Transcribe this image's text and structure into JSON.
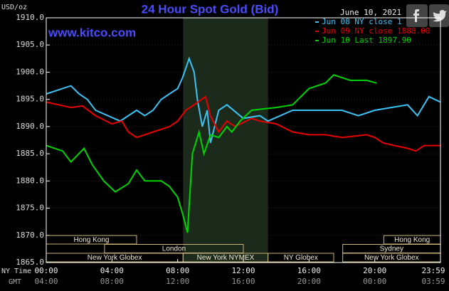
{
  "chart_data": {
    "type": "line",
    "title": "24 Hour Spot Gold (Bid)",
    "source": "www.kitco.com",
    "unit_label": "USD/oz",
    "date": "June 10, 2021",
    "time_row_labels": [
      "NY Time",
      "GMT"
    ],
    "ylim": [
      1865,
      1910
    ],
    "yticks": [
      {
        "value": 1865,
        "label": "1865.0"
      },
      {
        "value": 1870,
        "label": "1870.0"
      },
      {
        "value": 1875,
        "label": "1875.0"
      },
      {
        "value": 1880,
        "label": "1880.0"
      },
      {
        "value": 1885,
        "label": "1885.0"
      },
      {
        "value": 1890,
        "label": "1890.0"
      },
      {
        "value": 1895,
        "label": "1895.0"
      },
      {
        "value": 1900,
        "label": "1900.0"
      },
      {
        "value": 1905,
        "label": "1905.0"
      },
      {
        "value": 1910,
        "label": "1910.0"
      }
    ],
    "xlim": [
      0,
      24
    ],
    "xticks": [
      {
        "value": 0,
        "label": "00:00"
      },
      {
        "value": 4,
        "label": "04:00"
      },
      {
        "value": 8,
        "label": "08:00"
      },
      {
        "value": 12,
        "label": "12:00"
      },
      {
        "value": 16,
        "label": "16:00"
      },
      {
        "value": 20,
        "label": "20:00"
      },
      {
        "value": 24,
        "label": "23:59"
      }
    ],
    "gmt_labels": [
      "04:00",
      "08:00",
      "12:00",
      "16:00",
      "20:00",
      "00:00",
      "03:59"
    ],
    "highlight": [
      8.33,
      13.5
    ],
    "sessions": [
      {
        "label": "Hong Kong",
        "row": 0,
        "start": 0,
        "end": 5.5
      },
      {
        "label": "Hong Kong",
        "row": 0,
        "start": 20.55,
        "end": 24
      },
      {
        "label": "London",
        "row": 1,
        "start": 3.55,
        "end": 12
      },
      {
        "label": "Sydney",
        "row": 1,
        "start": 18.05,
        "end": 24
      },
      {
        "label": "New York Globex",
        "row": 2,
        "start": 0,
        "end": 8.33
      },
      {
        "label": "New York NYMEX",
        "row": 2,
        "start": 8.33,
        "end": 13.5
      },
      {
        "label": "NY Globex",
        "row": 2,
        "start": 13.5,
        "end": 17.5
      },
      {
        "label": "New York Globex",
        "row": 2,
        "start": 18.05,
        "end": 24
      }
    ],
    "series": [
      {
        "name": "Jun 08 NY close 1",
        "color": "#3cc3f5",
        "x": [
          0,
          1.5,
          2,
          2.5,
          3,
          4.5,
          5.5,
          6,
          6.5,
          7,
          7.5,
          8,
          8.3,
          8.7,
          9,
          9.2,
          9.5,
          9.8,
          10,
          10.5,
          11,
          12,
          13,
          13.5,
          15,
          16,
          17,
          18,
          19,
          20,
          21,
          22,
          22.6,
          23.3,
          24
        ],
        "values": [
          1896,
          1897.5,
          1896,
          1895,
          1893,
          1891,
          1893,
          1892,
          1893,
          1895,
          1896,
          1897,
          1899,
          1902.5,
          1900,
          1895,
          1890,
          1893,
          1887,
          1893,
          1894,
          1891.5,
          1892,
          1891,
          1893,
          1893,
          1893,
          1893,
          1892,
          1893,
          1893.5,
          1894,
          1892,
          1895.5,
          1894.5
        ]
      },
      {
        "name": "Jun 09 NY close 1888.00",
        "color": "#e80000",
        "x": [
          0,
          1.5,
          2.2,
          3,
          4,
          4.6,
          5,
          5.5,
          6.5,
          7.5,
          8,
          8.5,
          9,
          9.7,
          10,
          10.5,
          11,
          11.5,
          12.5,
          13,
          14,
          15,
          16,
          17,
          18,
          19.5,
          20,
          20.5,
          21.2,
          22,
          22.5,
          23,
          24
        ],
        "values": [
          1894.5,
          1893.5,
          1893.8,
          1892,
          1890.5,
          1891,
          1889,
          1888,
          1889,
          1890,
          1891,
          1893,
          1894,
          1895.5,
          1892,
          1889,
          1891,
          1890,
          1891.5,
          1891,
          1890.5,
          1889,
          1888.5,
          1888.5,
          1888,
          1888.5,
          1888,
          1887,
          1886.5,
          1886,
          1885.5,
          1886.5,
          1886.5
        ]
      },
      {
        "name": "Jun 10 Last 1897.90",
        "color": "#00d400",
        "x": [
          0,
          1,
          1.5,
          2.3,
          2.8,
          3.5,
          4.2,
          5,
          5.5,
          6,
          7,
          7.5,
          8,
          8.3,
          8.6,
          8.9,
          9.3,
          9.6,
          10,
          10.5,
          11,
          11.3,
          11.8,
          12.5,
          14,
          15,
          16,
          17,
          17.5,
          18.5,
          19.5,
          20.1
        ],
        "values": [
          1886.5,
          1885.5,
          1883.5,
          1886,
          1883,
          1880,
          1878,
          1879.5,
          1882,
          1880,
          1880,
          1879,
          1877,
          1874,
          1870.5,
          1885,
          1889,
          1885,
          1888.5,
          1888,
          1890,
          1889,
          1891,
          1893,
          1893.5,
          1894,
          1897,
          1898,
          1899.5,
          1898.5,
          1898.5,
          1898
        ]
      }
    ]
  }
}
